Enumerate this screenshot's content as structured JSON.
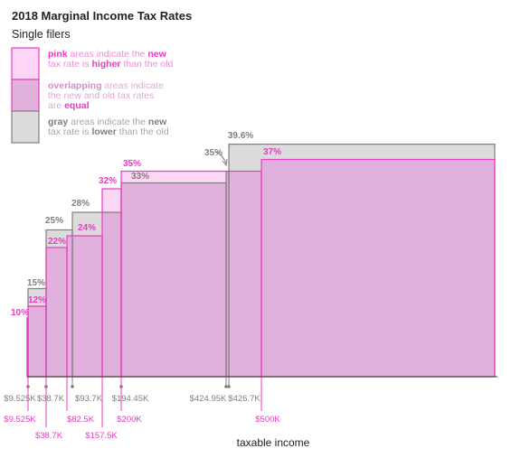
{
  "title": "2018 Marginal Income Tax Rates",
  "subtitle": "Single filers",
  "legend": {
    "pink": {
      "lines": [
        [
          {
            "t": "pink",
            "b": true,
            "c": "pink"
          },
          {
            "t": " areas indicate the ",
            "c": "pinklight"
          },
          {
            "t": "new",
            "b": true,
            "c": "pink"
          }
        ],
        [
          {
            "t": "tax rate is ",
            "c": "pinklight"
          },
          {
            "t": "higher",
            "b": true,
            "c": "pink"
          },
          {
            "t": " than the old",
            "c": "pinklight"
          }
        ]
      ]
    },
    "overlap": {
      "lines": [
        [
          {
            "t": "overlapping",
            "b": true,
            "c": "overlap"
          },
          {
            "t": " areas indicate",
            "c": "overlaplight"
          }
        ],
        [
          {
            "t": "the new and old tax rates",
            "c": "overlaplight"
          }
        ],
        [
          {
            "t": "are ",
            "c": "overlaplight"
          },
          {
            "t": "equal",
            "b": true,
            "c": "pink"
          }
        ]
      ]
    },
    "gray": {
      "lines": [
        [
          {
            "t": "gray",
            "b": true,
            "c": "gray"
          },
          {
            "t": " areas indicate the ",
            "c": "graylight"
          },
          {
            "t": "new",
            "b": true,
            "c": "gray"
          }
        ],
        [
          {
            "t": "tax rate is ",
            "c": "graylight"
          },
          {
            "t": "lower",
            "b": true,
            "c": "gray"
          },
          {
            "t": " than the old",
            "c": "graylight"
          }
        ]
      ]
    }
  },
  "colors": {
    "pink": "#e83cc0",
    "pinklight": "#f08ad8",
    "overlap": "#d68ccb",
    "overlaplight": "#e0a8d8",
    "gray": "#7f7f7f",
    "graylight": "#a6a6a6",
    "pink_fill": "#fcd6f4",
    "overlap_fill": "#e2b0dc",
    "gray_fill": "#dcdcdc",
    "axis": "#333333"
  },
  "chart_data": {
    "type": "area",
    "xlabel": "taxable income",
    "series": [
      {
        "name": "old",
        "thresholds": [
          "$9.525K",
          "$38.7K",
          "$93.7K",
          "$194.45K",
          "$424.95K",
          "$426.7K"
        ],
        "rates": [
          10,
          15,
          25,
          28,
          33,
          35,
          39.6
        ],
        "labels": [
          "15%",
          "25%",
          "28%",
          "33%",
          "35%",
          "39.6%"
        ]
      },
      {
        "name": "new",
        "thresholds": [
          "$9.525K",
          "$38.7K",
          "$82.5K",
          "$157.5K",
          "$200K",
          "$500K"
        ],
        "rates": [
          10,
          12,
          22,
          24,
          32,
          35,
          37
        ],
        "labels": [
          "10%",
          "12%",
          "22%",
          "24%",
          "32%",
          "35%",
          "37%"
        ]
      }
    ]
  }
}
